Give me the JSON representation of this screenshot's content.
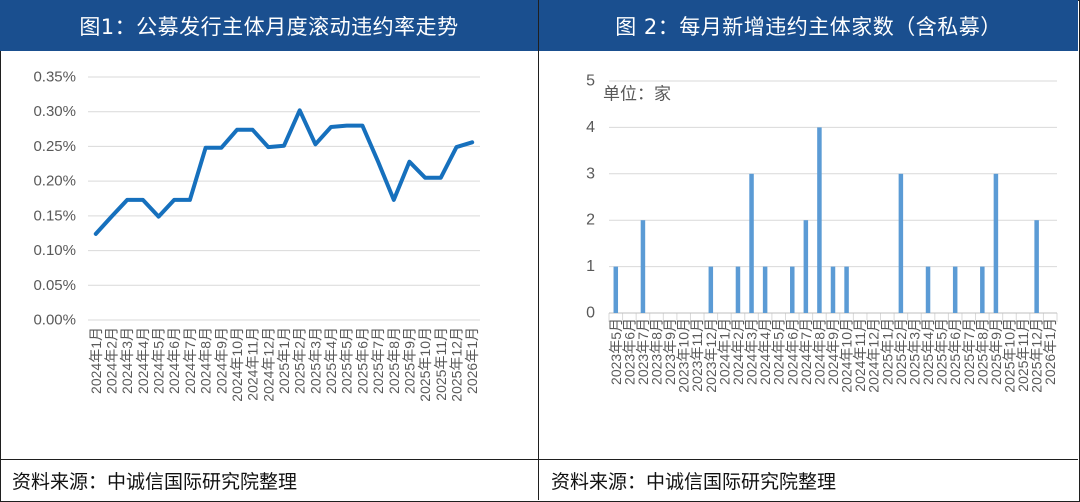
{
  "left_panel": {
    "title": "图1：公募发行主体月度滚动违约率走势",
    "source": "资料来源：中诚信国际研究院整理"
  },
  "right_panel": {
    "title": "图 2：每月新增违约主体家数（含私募）",
    "source": "资料来源：中诚信国际研究院整理"
  },
  "colors": {
    "header_bg": "#1a4f8f",
    "line": "#1670bd",
    "bar": "#5b9bd5",
    "grid": "#d9d9d9",
    "axis_text": "#595959"
  },
  "chart_data": [
    {
      "type": "line",
      "title": "图1：公募发行主体月度滚动违约率走势",
      "categories": [
        "2024年1月",
        "2024年2月",
        "2024年3月",
        "2024年4月",
        "2024年5月",
        "2024年6月",
        "2024年7月",
        "2024年8月",
        "2024年9月",
        "2024年10月",
        "2024年11月",
        "2024年12月",
        "2025年1月",
        "2025年2月",
        "2025年3月",
        "2025年4月",
        "2025年5月",
        "2025年6月",
        "2025年7月",
        "2025年8月",
        "2025年9月",
        "2025年10月",
        "2025年11月",
        "2025年12月",
        "2026年1月"
      ],
      "values": [
        0.124,
        0.149,
        0.173,
        0.173,
        0.149,
        0.173,
        0.173,
        0.248,
        0.248,
        0.274,
        0.274,
        0.249,
        0.251,
        0.302,
        0.253,
        0.278,
        0.28,
        0.28,
        0.228,
        0.173,
        0.228,
        0.205,
        0.205,
        0.249,
        0.256
      ],
      "ylim": [
        0,
        0.35
      ],
      "yticks": [
        "0.00%",
        "0.05%",
        "0.10%",
        "0.15%",
        "0.20%",
        "0.25%",
        "0.30%",
        "0.35%"
      ],
      "grid": true
    },
    {
      "type": "bar",
      "title": "图 2：每月新增违约主体家数（含私募）",
      "unit_label": "单位：家",
      "categories": [
        "2023年5月",
        "2023年6月",
        "2023年7月",
        "2023年8月",
        "2023年9月",
        "2023年10月",
        "2023年11月",
        "2023年12月",
        "2024年1月",
        "2024年2月",
        "2024年3月",
        "2024年4月",
        "2024年5月",
        "2024年6月",
        "2024年7月",
        "2024年8月",
        "2024年9月",
        "2024年10月",
        "2024年11月",
        "2024年12月",
        "2025年1月",
        "2025年2月",
        "2025年3月",
        "2025年4月",
        "2025年5月",
        "2025年6月",
        "2025年7月",
        "2025年8月",
        "2025年9月",
        "2025年10月",
        "2025年11月",
        "2025年12月",
        "2026年1月"
      ],
      "values": [
        1,
        0,
        2,
        0,
        0,
        0,
        0,
        1,
        0,
        1,
        3,
        1,
        0,
        1,
        2,
        4,
        1,
        1,
        0,
        0,
        0,
        3,
        0,
        1,
        0,
        1,
        0,
        1,
        3,
        0,
        0,
        2,
        0
      ],
      "ylim": [
        0,
        5
      ],
      "yticks": [
        "0",
        "1",
        "2",
        "3",
        "4",
        "5"
      ],
      "grid": true
    }
  ]
}
